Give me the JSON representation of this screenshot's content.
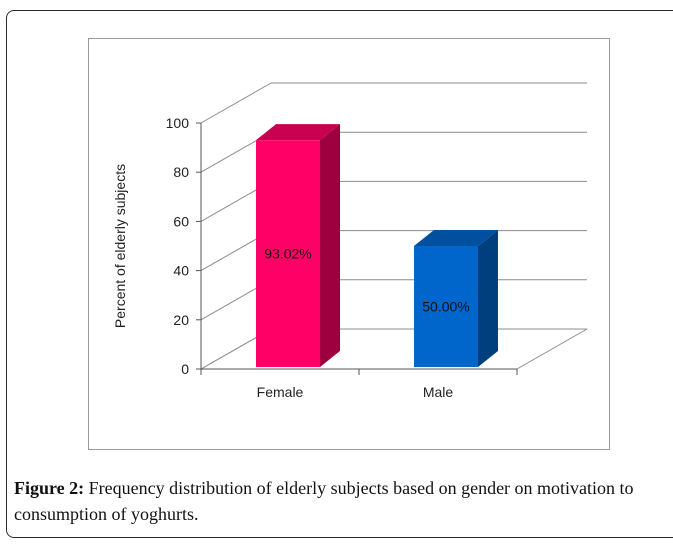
{
  "chart_data": {
    "type": "bar",
    "categories": [
      "Female",
      "Male"
    ],
    "values": [
      93.02,
      50.0
    ],
    "data_labels": [
      "93.02%",
      "50.00%"
    ],
    "ylabel": "Percent of elderly subjects",
    "ylim": [
      0,
      100
    ],
    "yticks": [
      0,
      20,
      40,
      60,
      80,
      100
    ],
    "grid": true,
    "style": "3d-column",
    "colors": [
      "#ff0066",
      "#0066cc"
    ]
  },
  "caption": {
    "label": "Figure 2:",
    "text": " Frequency distribution of elderly subjects based on gender on motivation to consumption of yoghurts."
  }
}
